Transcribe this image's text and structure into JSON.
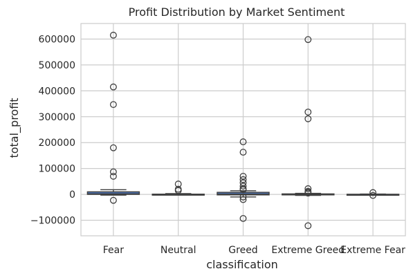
{
  "chart_data": {
    "type": "box",
    "title": "Profit Distribution by Market Sentiment",
    "xlabel": "classification",
    "ylabel": "total_profit",
    "ylim": [
      -160000,
      660000
    ],
    "yticks": [
      -100000,
      0,
      100000,
      200000,
      300000,
      400000,
      500000,
      600000
    ],
    "ytick_labels": [
      "−100000",
      "0",
      "100000",
      "200000",
      "300000",
      "400000",
      "500000",
      "600000"
    ],
    "grid": true,
    "box_color": "#4c72b0",
    "categories": [
      "Fear",
      "Neutral",
      "Greed",
      "Extreme Greed",
      "Extreme Fear"
    ],
    "boxes": [
      {
        "name": "Fear",
        "whisker_low": -3000,
        "q1": 0,
        "median": 2000,
        "q3": 10000,
        "whisker_high": 18000,
        "outliers": [
          615000,
          415000,
          347000,
          180000,
          87000,
          70000,
          -23000
        ]
      },
      {
        "name": "Neutral",
        "whisker_low": -2000,
        "q1": -500,
        "median": 0,
        "q3": 1000,
        "whisker_high": 3000,
        "outliers": [
          40000,
          20000,
          15000
        ]
      },
      {
        "name": "Greed",
        "whisker_low": -10000,
        "q1": -2000,
        "median": 1000,
        "q3": 8000,
        "whisker_high": 14000,
        "outliers": [
          203000,
          163000,
          70000,
          57000,
          45000,
          32000,
          22000,
          18000,
          -10000,
          -20000,
          -93000
        ]
      },
      {
        "name": "Extreme Greed",
        "whisker_low": -4000,
        "q1": -1500,
        "median": 0,
        "q3": 2000,
        "whisker_high": 4000,
        "outliers": [
          598000,
          318000,
          292000,
          22000,
          12000,
          8000,
          5000,
          -121000
        ]
      },
      {
        "name": "Extreme Fear",
        "whisker_low": -1500,
        "q1": -500,
        "median": 0,
        "q3": 500,
        "whisker_high": 1500,
        "outliers": [
          7000,
          -4000
        ]
      }
    ]
  }
}
